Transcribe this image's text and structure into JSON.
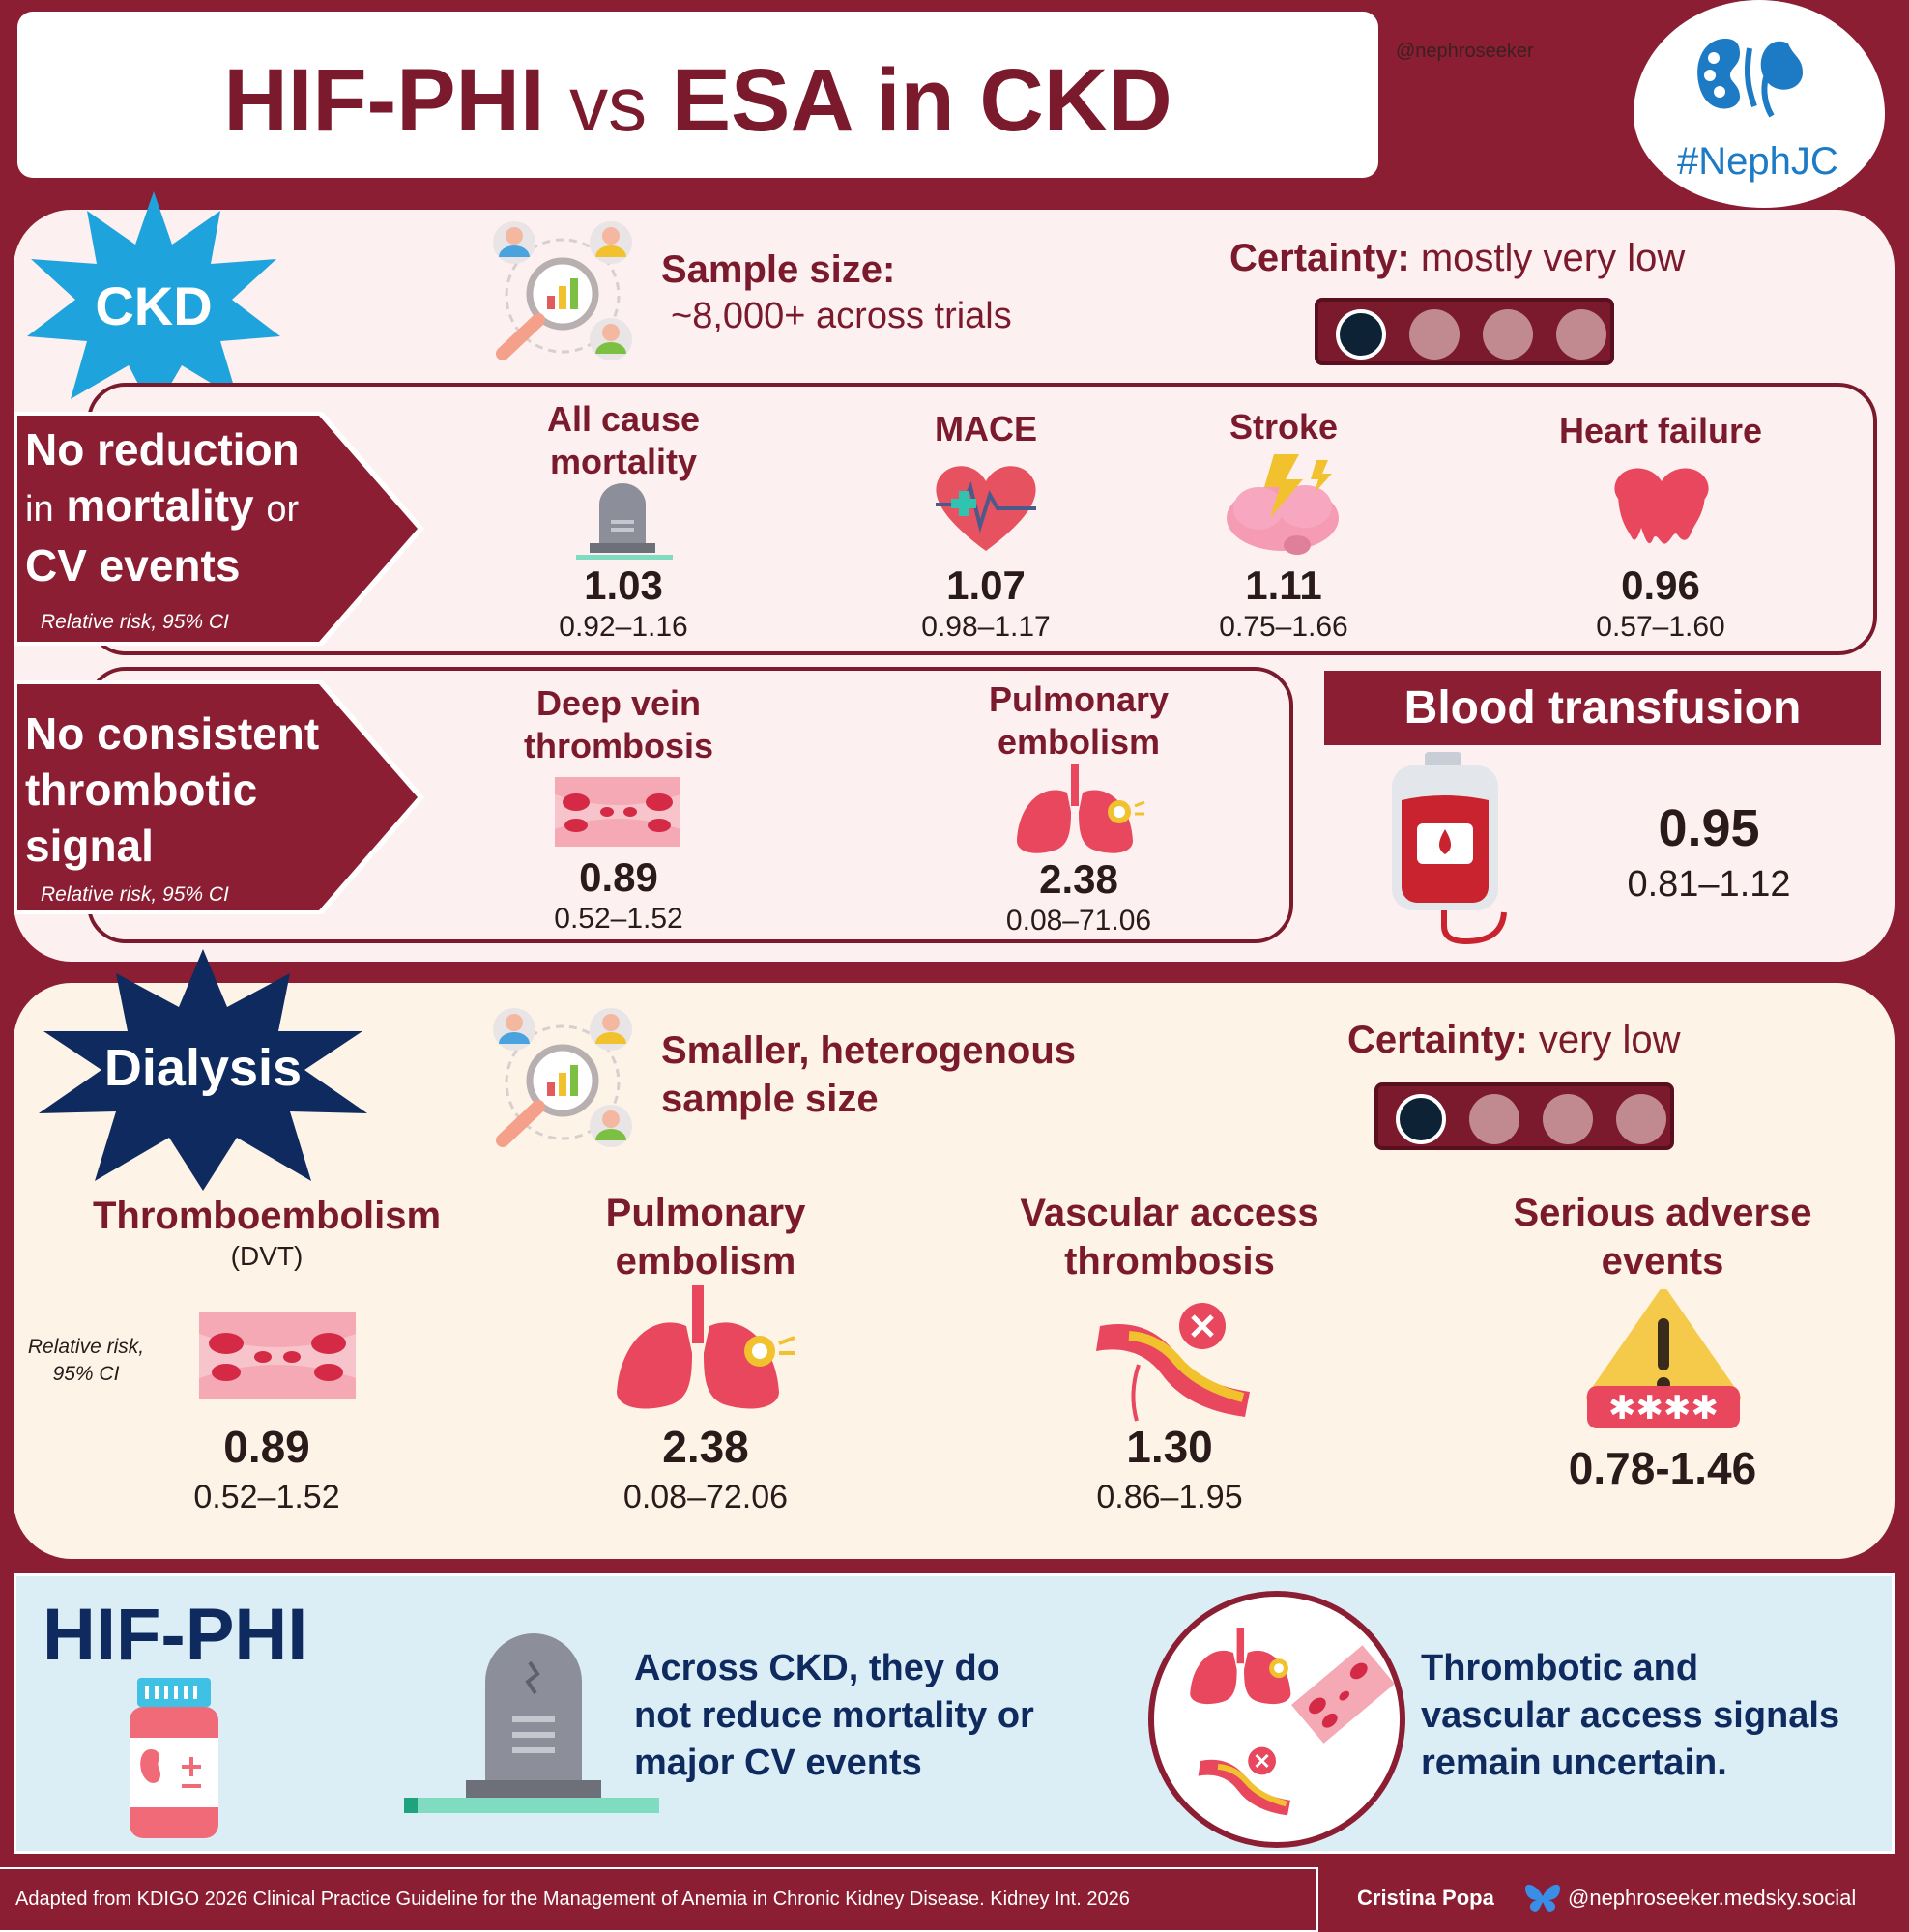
{
  "title": {
    "part1": "HIF-PHI",
    "vs": "vs",
    "part2": "ESA in CKD"
  },
  "handle_top": "@nephroseeker",
  "logo_text": "#NephJC",
  "ckd": {
    "badge": "CKD",
    "sample_label": "Sample size:",
    "sample_value": "~8,000+ across trials",
    "certainty_label": "Certainty:",
    "certainty_value": "mostly very low",
    "certainty_level": 1,
    "certainty_max": 4,
    "cv": {
      "label_line1": "No reduction",
      "label_line2_a": "in",
      "label_line2_b": "mortality",
      "label_line2_c": "or",
      "label_line3": "CV events",
      "note": "Relative risk, 95% CI",
      "metrics": [
        {
          "title1": "All cause",
          "title2": "mortality",
          "value": "1.03",
          "ci": "0.92–1.16",
          "icon": "tombstone-icon"
        },
        {
          "title1": "MACE",
          "title2": "",
          "value": "1.07",
          "ci": "0.98–1.17",
          "icon": "heart-pulse-icon"
        },
        {
          "title1": "Stroke",
          "title2": "",
          "value": "1.11",
          "ci": "0.75–1.66",
          "icon": "brain-lightning-icon"
        },
        {
          "title1": "Heart failure",
          "title2": "",
          "value": "0.96",
          "ci": "0.57–1.60",
          "icon": "melting-heart-icon"
        }
      ]
    },
    "thrombo": {
      "label_line1": "No consistent",
      "label_line2": "thrombotic",
      "label_line3": "signal",
      "note": "Relative risk, 95% CI",
      "metrics": [
        {
          "title1": "Deep vein",
          "title2": "thrombosis",
          "value": "0.89",
          "ci": "0.52–1.52",
          "icon": "vein-clot-icon"
        },
        {
          "title1": "Pulmonary",
          "title2": "embolism",
          "value": "2.38",
          "ci": "0.08–71.06",
          "icon": "lungs-icon"
        }
      ]
    },
    "transfusion": {
      "title": "Blood transfusion",
      "value": "0.95",
      "ci": "0.81–1.12",
      "icon": "blood-bag-icon"
    }
  },
  "dialysis": {
    "badge": "Dialysis",
    "sample_line1": "Smaller, heterogenous",
    "sample_line2": "sample size",
    "certainty_label": "Certainty:",
    "certainty_value": "very low",
    "certainty_level": 1,
    "certainty_max": 4,
    "note_line1": "Relative risk,",
    "note_line2": "95% CI",
    "metrics": [
      {
        "title1": "Thromboembolism",
        "title2": "",
        "sub": "(DVT)",
        "value": "0.89",
        "ci": "0.52–1.52",
        "icon": "vein-clot-icon"
      },
      {
        "title1": "Pulmonary",
        "title2": "embolism",
        "sub": "",
        "value": "2.38",
        "ci": "0.08–72.06",
        "icon": "lungs-icon"
      },
      {
        "title1": "Vascular access",
        "title2": "thrombosis",
        "sub": "",
        "value": "1.30",
        "ci": "0.86–1.95",
        "icon": "blocked-vessel-icon"
      },
      {
        "title1": "Serious adverse",
        "title2": "events",
        "sub": "",
        "value": "",
        "ci": "0.78-1.46",
        "icon": "warning-icon"
      }
    ]
  },
  "summary": {
    "title": "HIF-PHI",
    "text1_line1": "Across CKD, they do",
    "text1_line2": "not reduce mortality or",
    "text1_line3": "major CV events",
    "text2_line1": "Thrombotic and",
    "text2_line2": "vascular access signals",
    "text2_line3": "remain uncertain."
  },
  "footer": {
    "reference": "Adapted from KDIGO 2026  Clinical Practice Guideline for the Management of Anemia in Chronic Kidney Disease. Kidney Int. 2026",
    "author": "Cristina Popa",
    "social": "@nephroseeker.medsky.social"
  },
  "colors": {
    "maroon": "#8b1e32",
    "navy": "#0f2a5e",
    "ckd_star": "#1fa3dd",
    "dialysis_star": "#0f2a5e"
  }
}
